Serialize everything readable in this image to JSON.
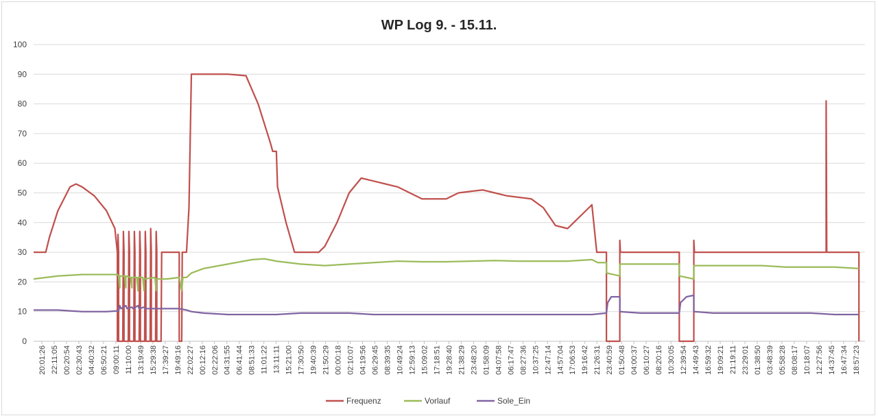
{
  "chart_data": {
    "type": "line",
    "title": "WP Log 9. - 15.11.",
    "xlabel": "",
    "ylabel": "",
    "ylim": [
      0,
      100
    ],
    "y_ticks": [
      "0",
      "10",
      "20",
      "30",
      "40",
      "50",
      "60",
      "70",
      "80",
      "90",
      "100"
    ],
    "grid": true,
    "legend_position": "bottom",
    "categories": [
      "20:01:26",
      "22:11:05",
      "00:20:54",
      "02:30:43",
      "04:40:32",
      "06:50:21",
      "09:00:11",
      "11:10:00",
      "13:19:49",
      "15:29:38",
      "17:39:27",
      "19:49:16",
      "22:02:27",
      "00:12:16",
      "02:22:06",
      "04:31:55",
      "06:41:44",
      "08:51:33",
      "11:01:22",
      "13:11:11",
      "15:21:00",
      "17:30:50",
      "19:40:39",
      "21:50:29",
      "00:00:18",
      "02:10:07",
      "04:19:56",
      "06:29:45",
      "08:39:35",
      "10:49:24",
      "12:59:13",
      "15:09:02",
      "17:18:51",
      "19:28:40",
      "21:38:29",
      "23:48:20",
      "01:58:09",
      "04:07:58",
      "06:17:47",
      "08:27:36",
      "10:37:25",
      "12:47:14",
      "14:57:04",
      "17:06:53",
      "19:16:42",
      "21:26:31",
      "23:40:59",
      "01:50:48",
      "04:00:37",
      "06:10:27",
      "08:20:16",
      "10:30:05",
      "12:39:54",
      "14:49:43",
      "16:59:32",
      "19:09:21",
      "21:19:11",
      "23:29:01",
      "01:38:50",
      "03:48:39",
      "05:58:28",
      "08:08:17",
      "10:18:07",
      "12:27:56",
      "14:37:45",
      "16:47:34",
      "18:57:23"
    ],
    "series": [
      {
        "name": "Frequenz",
        "color": "#c0504d",
        "points": [
          [
            0,
            30
          ],
          [
            1.0,
            30
          ],
          [
            1.3,
            35
          ],
          [
            2,
            44
          ],
          [
            2.5,
            48
          ],
          [
            3,
            52
          ],
          [
            3.5,
            53
          ],
          [
            4,
            52
          ],
          [
            5,
            49
          ],
          [
            6,
            44
          ],
          [
            6.7,
            38
          ],
          [
            6.9,
            30
          ],
          [
            6.9,
            0
          ],
          [
            6.95,
            36
          ],
          [
            7.0,
            30
          ],
          [
            7.0,
            0
          ],
          [
            7.35,
            0
          ],
          [
            7.4,
            37
          ],
          [
            7.45,
            30
          ],
          [
            7.45,
            0
          ],
          [
            7.8,
            0
          ],
          [
            7.85,
            37
          ],
          [
            7.9,
            30
          ],
          [
            7.9,
            0
          ],
          [
            8.25,
            0
          ],
          [
            8.3,
            37
          ],
          [
            8.35,
            30
          ],
          [
            8.35,
            0
          ],
          [
            8.7,
            0
          ],
          [
            8.75,
            37
          ],
          [
            8.8,
            30
          ],
          [
            8.8,
            0
          ],
          [
            9.15,
            0
          ],
          [
            9.2,
            37
          ],
          [
            9.25,
            30
          ],
          [
            9.25,
            0
          ],
          [
            9.6,
            0
          ],
          [
            9.65,
            38
          ],
          [
            9.7,
            30
          ],
          [
            9.7,
            0
          ],
          [
            10.05,
            0
          ],
          [
            10.1,
            37
          ],
          [
            10.15,
            30
          ],
          [
            10.15,
            0
          ],
          [
            10.5,
            0
          ],
          [
            10.55,
            30
          ],
          [
            12,
            30
          ],
          [
            12,
            0
          ],
          [
            12.2,
            0
          ],
          [
            12.25,
            30
          ],
          [
            12.6,
            30
          ],
          [
            12.8,
            45
          ],
          [
            13,
            90
          ],
          [
            14,
            90
          ],
          [
            16,
            90
          ],
          [
            17.5,
            89.5
          ],
          [
            18.5,
            80
          ],
          [
            19.5,
            67
          ],
          [
            19.7,
            64
          ],
          [
            20,
            64
          ],
          [
            20.1,
            52
          ],
          [
            20.8,
            40
          ],
          [
            21.5,
            30
          ],
          [
            22,
            30
          ],
          [
            23.5,
            30
          ],
          [
            24,
            32
          ],
          [
            25,
            40
          ],
          [
            26,
            50
          ],
          [
            27,
            55
          ],
          [
            28,
            54
          ],
          [
            29,
            53
          ],
          [
            30,
            52
          ],
          [
            31,
            50
          ],
          [
            32,
            48
          ],
          [
            33,
            48
          ],
          [
            34,
            48
          ],
          [
            35,
            50
          ],
          [
            36,
            50.5
          ],
          [
            37,
            51
          ],
          [
            38,
            50
          ],
          [
            39,
            49
          ],
          [
            40,
            48.5
          ],
          [
            41,
            48
          ],
          [
            42,
            45
          ],
          [
            43,
            39
          ],
          [
            44,
            38
          ],
          [
            44.5,
            40
          ],
          [
            45.5,
            44
          ],
          [
            46,
            46
          ],
          [
            46.4,
            30
          ],
          [
            47.2,
            30
          ],
          [
            47.2,
            0
          ],
          [
            48.3,
            0
          ],
          [
            48.3,
            34
          ],
          [
            48.35,
            30
          ],
          [
            51.5,
            30
          ],
          [
            53.2,
            30
          ],
          [
            53.2,
            0
          ],
          [
            54.4,
            0
          ],
          [
            54.4,
            34
          ],
          [
            54.45,
            30
          ],
          [
            60,
            30
          ],
          [
            65,
            30
          ],
          [
            65.3,
            30
          ],
          [
            65.3,
            81
          ],
          [
            65.35,
            30
          ],
          [
            68.0,
            30
          ],
          [
            68.0,
            0
          ]
        ]
      },
      {
        "name": "Vorlauf",
        "color": "#9bbb59",
        "points": [
          [
            0,
            21
          ],
          [
            2,
            22
          ],
          [
            4,
            22.5
          ],
          [
            6,
            22.5
          ],
          [
            6.9,
            22.5
          ],
          [
            7,
            22
          ],
          [
            7.1,
            18
          ],
          [
            7.1,
            22
          ],
          [
            7.5,
            22
          ],
          [
            7.6,
            18
          ],
          [
            7.6,
            22
          ],
          [
            8,
            21.5
          ],
          [
            8.1,
            18
          ],
          [
            8.1,
            21.5
          ],
          [
            8.5,
            21.5
          ],
          [
            8.6,
            17
          ],
          [
            8.6,
            21.5
          ],
          [
            9,
            21.5
          ],
          [
            9.1,
            17
          ],
          [
            9.1,
            21
          ],
          [
            10,
            21.5
          ],
          [
            10.1,
            17
          ],
          [
            10.1,
            21
          ],
          [
            11,
            21
          ],
          [
            12,
            21.5
          ],
          [
            12.2,
            17
          ],
          [
            12.3,
            21.5
          ],
          [
            12.6,
            21.5
          ],
          [
            13,
            23
          ],
          [
            14,
            24.5
          ],
          [
            16,
            26
          ],
          [
            18,
            27.5
          ],
          [
            19,
            27.8
          ],
          [
            20,
            27
          ],
          [
            22,
            26
          ],
          [
            24,
            25.5
          ],
          [
            26,
            26
          ],
          [
            28,
            26.5
          ],
          [
            30,
            27
          ],
          [
            32,
            26.8
          ],
          [
            34,
            26.8
          ],
          [
            36,
            27
          ],
          [
            38,
            27.2
          ],
          [
            40,
            27
          ],
          [
            42,
            27
          ],
          [
            44,
            27
          ],
          [
            46,
            27.5
          ],
          [
            46.5,
            26.5
          ],
          [
            47.2,
            26.5
          ],
          [
            47.2,
            23
          ],
          [
            48.3,
            22
          ],
          [
            48.3,
            26
          ],
          [
            50,
            26
          ],
          [
            52,
            26
          ],
          [
            53.2,
            26
          ],
          [
            53.2,
            22
          ],
          [
            54.4,
            21
          ],
          [
            54.4,
            25.5
          ],
          [
            56,
            25.5
          ],
          [
            58,
            25.5
          ],
          [
            60,
            25.5
          ],
          [
            62,
            25
          ],
          [
            64,
            25
          ],
          [
            66,
            25
          ],
          [
            68,
            24.5
          ]
        ]
      },
      {
        "name": "Sole_Ein",
        "color": "#8064a2",
        "points": [
          [
            0,
            10.5
          ],
          [
            2,
            10.5
          ],
          [
            4,
            10
          ],
          [
            6,
            10
          ],
          [
            6.9,
            10.2
          ],
          [
            7,
            10.2
          ],
          [
            7.1,
            12
          ],
          [
            7.2,
            11
          ],
          [
            7.6,
            12
          ],
          [
            7.7,
            11
          ],
          [
            8.1,
            11.5
          ],
          [
            8.2,
            11
          ],
          [
            8.6,
            12
          ],
          [
            8.7,
            11
          ],
          [
            9.1,
            11.5
          ],
          [
            9.2,
            11
          ],
          [
            10,
            11
          ],
          [
            11,
            11
          ],
          [
            12,
            11
          ],
          [
            12.6,
            10.5
          ],
          [
            13,
            10
          ],
          [
            14,
            9.5
          ],
          [
            16,
            9
          ],
          [
            18,
            9
          ],
          [
            20,
            9
          ],
          [
            22,
            9.5
          ],
          [
            24,
            9.5
          ],
          [
            26,
            9.5
          ],
          [
            28,
            9
          ],
          [
            30,
            9
          ],
          [
            32,
            9
          ],
          [
            34,
            9
          ],
          [
            36,
            9
          ],
          [
            38,
            9
          ],
          [
            40,
            9
          ],
          [
            42,
            9
          ],
          [
            44,
            9
          ],
          [
            46,
            9
          ],
          [
            47.2,
            9.5
          ],
          [
            47.3,
            13
          ],
          [
            47.6,
            15
          ],
          [
            48.3,
            15
          ],
          [
            48.3,
            10
          ],
          [
            50,
            9.5
          ],
          [
            52,
            9.5
          ],
          [
            53.2,
            9.5
          ],
          [
            53.3,
            13
          ],
          [
            53.8,
            15
          ],
          [
            54.4,
            15.5
          ],
          [
            54.4,
            10
          ],
          [
            56,
            9.5
          ],
          [
            58,
            9.5
          ],
          [
            60,
            9.5
          ],
          [
            62,
            9.5
          ],
          [
            64,
            9.5
          ],
          [
            66,
            9
          ],
          [
            68,
            9
          ]
        ]
      }
    ]
  }
}
